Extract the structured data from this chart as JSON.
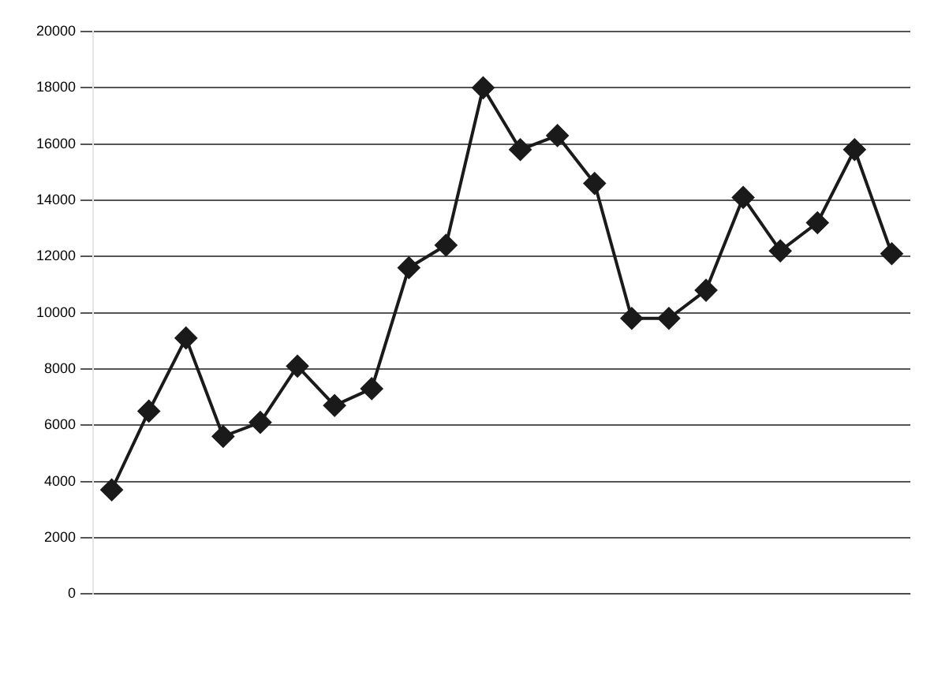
{
  "chart_data": {
    "type": "line",
    "categories": [
      null,
      null,
      null,
      null,
      null,
      null,
      null,
      null,
      null,
      null,
      null,
      null,
      null,
      null,
      null,
      null,
      null,
      null,
      null,
      null,
      null,
      null
    ],
    "series": [
      {
        "color": "#1a1a1a",
        "values": [
          3700,
          6500,
          9100,
          5600,
          6100,
          8100,
          6700,
          7300,
          11600,
          12400,
          18000,
          15800,
          16300,
          14600,
          9800,
          9800,
          10800,
          14100,
          12200,
          13200,
          15800,
          12100
        ]
      }
    ],
    "ylim": [
      0,
      20000
    ],
    "yticks": [
      0,
      2000,
      4000,
      6000,
      8000,
      10000,
      12000,
      14000,
      16000,
      18000,
      20000
    ],
    "grid": "y",
    "legend": false,
    "marker": "diamond",
    "line_style": "solid"
  }
}
